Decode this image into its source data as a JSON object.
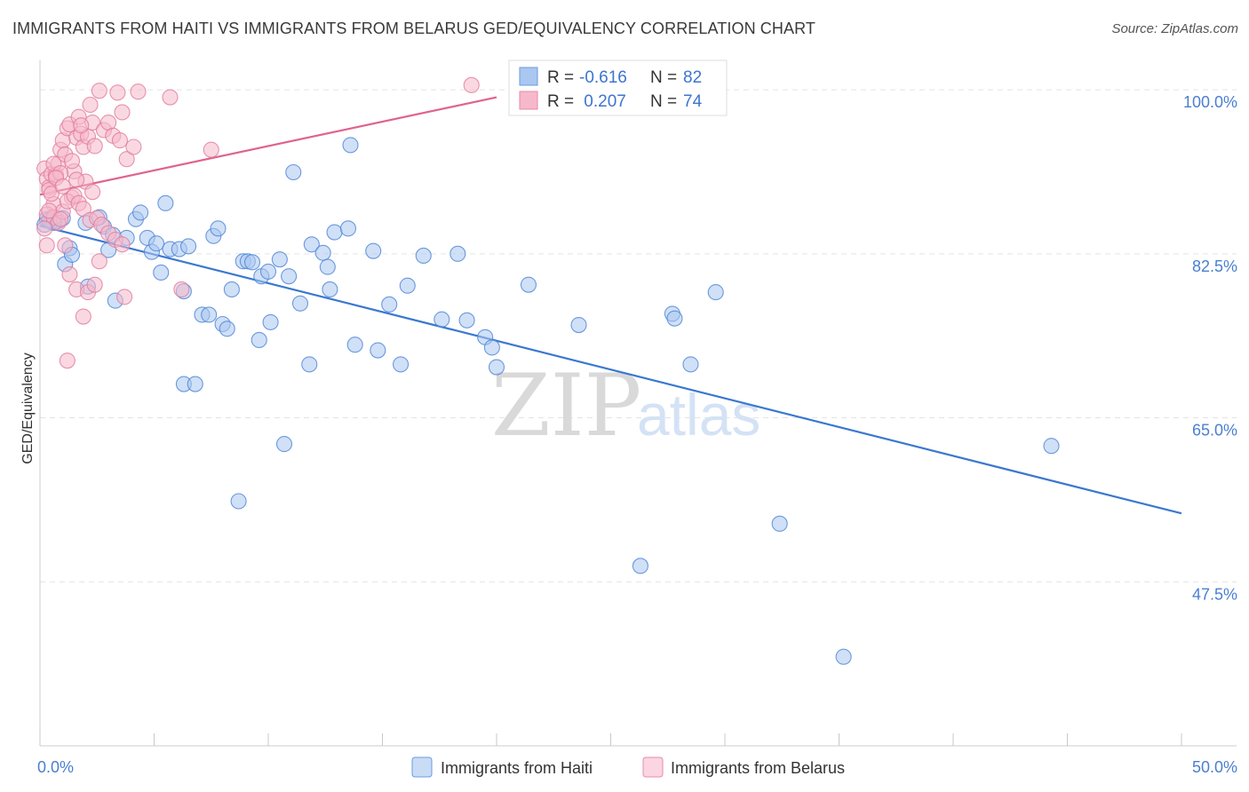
{
  "title": "IMMIGRANTS FROM HAITI VS IMMIGRANTS FROM BELARUS GED/EQUIVALENCY CORRELATION CHART",
  "source": "Source: ZipAtlas.com",
  "watermark": {
    "zip": "ZIP",
    "atlas": "atlas"
  },
  "legend_box": {
    "rows": [
      {
        "r_label": "R =",
        "r_value": "-0.616",
        "n_label": "N =",
        "n_value": "82",
        "color": "#a9c7f0"
      },
      {
        "r_label": "R =",
        "r_value": " 0.207",
        "n_label": "N =",
        "n_value": "74",
        "color": "#f6b8cb"
      }
    ]
  },
  "chart_data": {
    "type": "scatter",
    "ylabel": "GED/Equivalency",
    "xlim": [
      0,
      50
    ],
    "ylim": [
      30,
      102
    ],
    "x_tick_labels": [
      {
        "value": 0,
        "label": "0.0%"
      },
      {
        "value": 50,
        "label": "50.0%"
      }
    ],
    "y_tick_labels": [
      {
        "value": 100,
        "label": "100.0%"
      },
      {
        "value": 82.5,
        "label": "82.5%"
      },
      {
        "value": 65,
        "label": "65.0%"
      },
      {
        "value": 47.5,
        "label": "47.5%"
      }
    ],
    "grid": true,
    "series": [
      {
        "name": "Immigrants from Haiti",
        "color": "#4a83d4",
        "fill": "#a9c7f0",
        "trendline": {
          "x": [
            0,
            50
          ],
          "y": [
            85.5,
            54.8
          ],
          "color": "#3a78d0"
        },
        "points": [
          [
            0.3,
            86.2
          ],
          [
            0.5,
            85.9
          ],
          [
            0.8,
            86.0
          ],
          [
            1.0,
            86.3
          ],
          [
            0.6,
            85.8
          ],
          [
            0.4,
            86.1
          ],
          [
            1.1,
            81.4
          ],
          [
            1.3,
            83.1
          ],
          [
            1.4,
            82.4
          ],
          [
            2.0,
            85.8
          ],
          [
            2.1,
            79.0
          ],
          [
            2.6,
            86.4
          ],
          [
            2.8,
            85.4
          ],
          [
            3.2,
            84.5
          ],
          [
            3.0,
            82.9
          ],
          [
            3.3,
            77.5
          ],
          [
            3.8,
            84.2
          ],
          [
            4.2,
            86.2
          ],
          [
            4.4,
            86.9
          ],
          [
            4.7,
            84.2
          ],
          [
            4.9,
            82.7
          ],
          [
            5.1,
            83.6
          ],
          [
            5.3,
            80.5
          ],
          [
            5.5,
            87.9
          ],
          [
            5.7,
            83.0
          ],
          [
            6.1,
            83.0
          ],
          [
            6.5,
            83.3
          ],
          [
            6.3,
            78.5
          ],
          [
            6.3,
            68.6
          ],
          [
            6.8,
            68.6
          ],
          [
            7.1,
            76.0
          ],
          [
            7.4,
            76.0
          ],
          [
            7.6,
            84.4
          ],
          [
            7.8,
            85.2
          ],
          [
            8.0,
            75.0
          ],
          [
            8.2,
            74.5
          ],
          [
            8.4,
            78.7
          ],
          [
            8.7,
            56.1
          ],
          [
            8.9,
            81.7
          ],
          [
            9.1,
            81.7
          ],
          [
            9.3,
            81.6
          ],
          [
            9.6,
            73.3
          ],
          [
            9.7,
            80.1
          ],
          [
            10.0,
            80.6
          ],
          [
            10.1,
            75.2
          ],
          [
            10.5,
            81.9
          ],
          [
            10.9,
            80.1
          ],
          [
            10.7,
            62.2
          ],
          [
            11.1,
            91.2
          ],
          [
            11.4,
            77.2
          ],
          [
            11.8,
            70.7
          ],
          [
            11.9,
            83.5
          ],
          [
            12.4,
            82.6
          ],
          [
            12.6,
            81.1
          ],
          [
            12.7,
            78.7
          ],
          [
            12.9,
            84.8
          ],
          [
            13.5,
            85.2
          ],
          [
            13.6,
            94.1
          ],
          [
            13.8,
            72.8
          ],
          [
            14.6,
            82.8
          ],
          [
            14.8,
            72.2
          ],
          [
            15.3,
            77.1
          ],
          [
            15.8,
            70.7
          ],
          [
            16.1,
            79.1
          ],
          [
            16.8,
            82.3
          ],
          [
            17.6,
            75.5
          ],
          [
            18.3,
            82.5
          ],
          [
            18.7,
            75.4
          ],
          [
            19.5,
            73.6
          ],
          [
            20.0,
            70.4
          ],
          [
            19.8,
            72.5
          ],
          [
            21.4,
            79.2
          ],
          [
            23.6,
            74.9
          ],
          [
            27.7,
            76.1
          ],
          [
            27.8,
            75.6
          ],
          [
            28.5,
            70.7
          ],
          [
            29.6,
            78.4
          ],
          [
            32.4,
            53.7
          ],
          [
            26.3,
            49.2
          ],
          [
            35.2,
            39.5
          ],
          [
            44.3,
            62.0
          ],
          [
            0.2,
            85.6
          ]
        ]
      },
      {
        "name": "Immigrants from Belarus",
        "color": "#e07a9c",
        "fill": "#f6b8cb",
        "trendline": {
          "x": [
            0,
            20
          ],
          "y": [
            88.8,
            99.2
          ],
          "color": "#e0638c"
        },
        "points": [
          [
            0.2,
            91.6
          ],
          [
            0.3,
            90.5
          ],
          [
            0.4,
            89.6
          ],
          [
            0.5,
            91.0
          ],
          [
            0.6,
            87.8
          ],
          [
            0.7,
            90.9
          ],
          [
            0.8,
            92.1
          ],
          [
            0.9,
            93.6
          ],
          [
            1.0,
            94.6
          ],
          [
            1.1,
            93.1
          ],
          [
            1.2,
            95.9
          ],
          [
            1.3,
            96.3
          ],
          [
            1.4,
            88.5
          ],
          [
            1.5,
            91.3
          ],
          [
            1.6,
            94.9
          ],
          [
            1.7,
            97.1
          ],
          [
            1.8,
            95.3
          ],
          [
            1.9,
            93.9
          ],
          [
            2.0,
            90.2
          ],
          [
            2.1,
            95.0
          ],
          [
            2.2,
            98.4
          ],
          [
            2.3,
            96.5
          ],
          [
            2.4,
            94.0
          ],
          [
            2.6,
            99.9
          ],
          [
            2.8,
            95.7
          ],
          [
            3.0,
            96.5
          ],
          [
            3.2,
            95.1
          ],
          [
            3.4,
            99.7
          ],
          [
            3.6,
            97.6
          ],
          [
            3.5,
            94.6
          ],
          [
            3.8,
            92.6
          ],
          [
            4.1,
            93.9
          ],
          [
            4.3,
            99.8
          ],
          [
            5.7,
            99.2
          ],
          [
            7.5,
            93.6
          ],
          [
            18.9,
            100.5
          ],
          [
            0.3,
            86.7
          ],
          [
            0.6,
            86.4
          ],
          [
            0.8,
            85.8
          ],
          [
            1.0,
            87.0
          ],
          [
            1.2,
            88.1
          ],
          [
            1.5,
            88.7
          ],
          [
            1.7,
            87.9
          ],
          [
            1.9,
            87.3
          ],
          [
            2.2,
            86.1
          ],
          [
            2.5,
            86.3
          ],
          [
            2.7,
            85.6
          ],
          [
            3.0,
            84.7
          ],
          [
            3.3,
            84.0
          ],
          [
            3.6,
            83.5
          ],
          [
            1.1,
            83.4
          ],
          [
            1.3,
            80.3
          ],
          [
            1.6,
            78.7
          ],
          [
            2.1,
            78.4
          ],
          [
            2.4,
            79.2
          ],
          [
            2.6,
            81.7
          ],
          [
            3.7,
            77.9
          ],
          [
            6.2,
            78.7
          ],
          [
            1.9,
            75.8
          ],
          [
            1.2,
            71.1
          ],
          [
            0.4,
            89.3
          ],
          [
            0.6,
            92.1
          ],
          [
            0.9,
            91.1
          ],
          [
            1.4,
            92.4
          ],
          [
            0.5,
            88.9
          ],
          [
            0.7,
            90.6
          ],
          [
            1.0,
            89.7
          ],
          [
            0.4,
            87.1
          ],
          [
            0.9,
            86.2
          ],
          [
            1.6,
            90.4
          ],
          [
            2.3,
            89.1
          ],
          [
            1.8,
            96.2
          ],
          [
            0.3,
            83.4
          ],
          [
            0.2,
            85.2
          ]
        ]
      }
    ]
  }
}
